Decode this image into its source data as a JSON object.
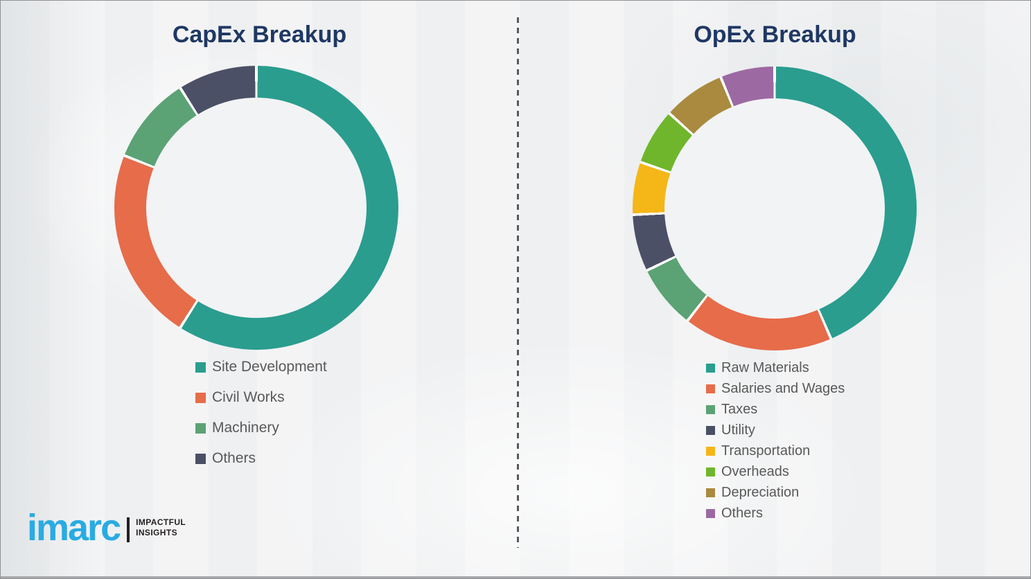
{
  "page": {
    "background": "#F2F3F4",
    "title_color": "#1F3864",
    "legend_text_color": "#595959",
    "divider_color": "#58595B",
    "border_color": "#8F9193"
  },
  "brand": {
    "logo_text": "imarc",
    "logo_color": "#29ABE2",
    "tagline_line1": "IMPACTFUL",
    "tagline_line2": "INSIGHTS",
    "tagline_color": "#231F20"
  },
  "chart_data": [
    {
      "type": "donut",
      "title": "CapEx Breakup",
      "unit": "percent",
      "start_angle_deg": 0,
      "direction": "clockwise",
      "legend_position": "below",
      "labels": [
        "Site Development",
        "Civil Works",
        "Machinery",
        "Others"
      ],
      "values": [
        59,
        22,
        10,
        9
      ],
      "colors": [
        "#2A9D8F",
        "#E66C4A",
        "#5BA275",
        "#4C5066"
      ]
    },
    {
      "type": "donut",
      "title": "OpEx Breakup",
      "unit": "percent",
      "start_angle_deg": 0,
      "direction": "clockwise",
      "legend_position": "below",
      "labels": [
        "Raw Materials",
        "Salaries and Wages",
        "Taxes",
        "Utility",
        "Transportation",
        "Overheads",
        "Depreciation",
        "Others"
      ],
      "values": [
        43.5,
        17,
        7.3,
        6.5,
        6,
        6.4,
        7.1,
        6.2
      ],
      "colors": [
        "#2A9D8F",
        "#E66C4A",
        "#5BA275",
        "#4C5066",
        "#F5B617",
        "#6FB62C",
        "#A98A3E",
        "#9C69A3"
      ]
    }
  ]
}
